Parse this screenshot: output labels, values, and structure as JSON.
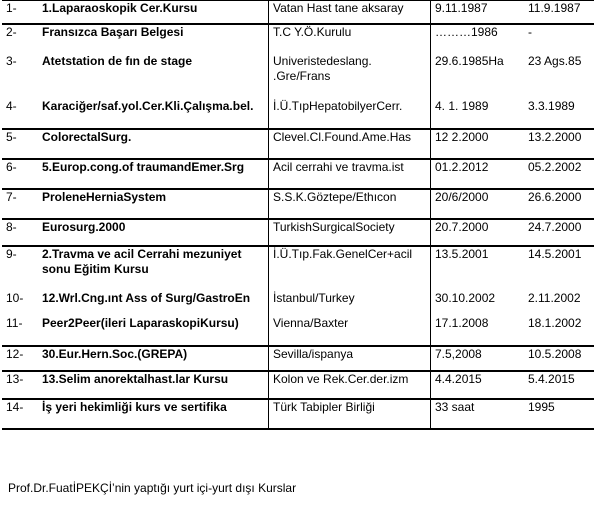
{
  "rows": [
    {
      "num": "1-",
      "name": "1.Laparaoskopik Cer.Kursu",
      "place": "Vatan Hast tane aksaray",
      "start": "9.11.1987",
      "end": "11.9.1987"
    },
    {
      "num": "2-",
      "name": "Fransızca Başarı Belgesi",
      "place": "T.C Y.Ö.Kurulu",
      "start": "………1986",
      "end": "-"
    },
    {
      "num": "3-",
      "name": "Atetstation de fın de stage",
      "place": "Univeristedeslang. .Gre/Frans",
      "start": "29.6.1985Ha",
      "end": "23 Ags.85"
    },
    {
      "num": "4-",
      "name": "Karaciğer/saf.yol.Cer.Kli.Çalışma.bel.",
      "place": "İ.Ü.TıpHepatobilyerCerr.",
      "start": "4. 1. 1989",
      "end": "3.3.1989"
    },
    {
      "num": "5-",
      "name": "ColorectalSurg.",
      "place": "Clevel.Cl.Found.Ame.Has",
      "start": "12 2.2000",
      "end": "13.2.2000"
    },
    {
      "num": "6-",
      "name": "5.Europ.cong.of traumandEmer.Srg",
      "place": "Acil cerrahi ve travma.ist",
      "start": "01.2.2012",
      "end": "05.2.2002"
    },
    {
      "num": "7-",
      "name": "ProleneHerniaSystem",
      "place": "S.S.K.Göztepe/Ethıcon",
      "start": "20/6/2000",
      "end": "26.6.2000"
    },
    {
      "num": "8-",
      "name": "Eurosurg.2000",
      "place": "TurkishSurgicalSociety",
      "start": "20.7.2000",
      "end": "24.7.2000"
    },
    {
      "num": "9-",
      "name": "2.Travma ve acil Cerrahi mezuniyet sonu Eğitim Kursu",
      "place": "İ.Ü.Tıp.Fak.GenelCer+acil",
      "start": "13.5.2001",
      "end": "14.5.2001"
    },
    {
      "num": "10-",
      "name": "12.Wrl.Cng.ınt Ass of Surg/GastroEn",
      "place": "İstanbul/Turkey",
      "start": "30.10.2002",
      "end": "2.11.2002"
    },
    {
      "num": "11-",
      "name": "Peer2Peer(ileri LaparaskopiKursu)",
      "place": "Vienna/Baxter",
      "start": "17.1.2008",
      "end": "18.1.2002"
    },
    {
      "num": "12-",
      "name": "30.Eur.Hern.Soc.(GREPA)",
      "place": "Sevilla/ispanya",
      "start": "7.5,2008",
      "end": "10.5.2008"
    },
    {
      "num": "13-",
      "name": "13.Selim anorektalhast.lar Kursu",
      "place": "Kolon ve Rek.Cer.der.izm",
      "start": "4.4.2015",
      "end": "5.4.2015"
    },
    {
      "num": "14-",
      "name": "İş yeri hekimliği kurs ve sertifika",
      "place": "Türk Tabipler Birliği",
      "start": "33 saat",
      "end": "1995"
    }
  ],
  "footer": "Prof.Dr.FuatİPEKÇİ’nin yaptığı yurt içi-yurt dışı Kurslar"
}
